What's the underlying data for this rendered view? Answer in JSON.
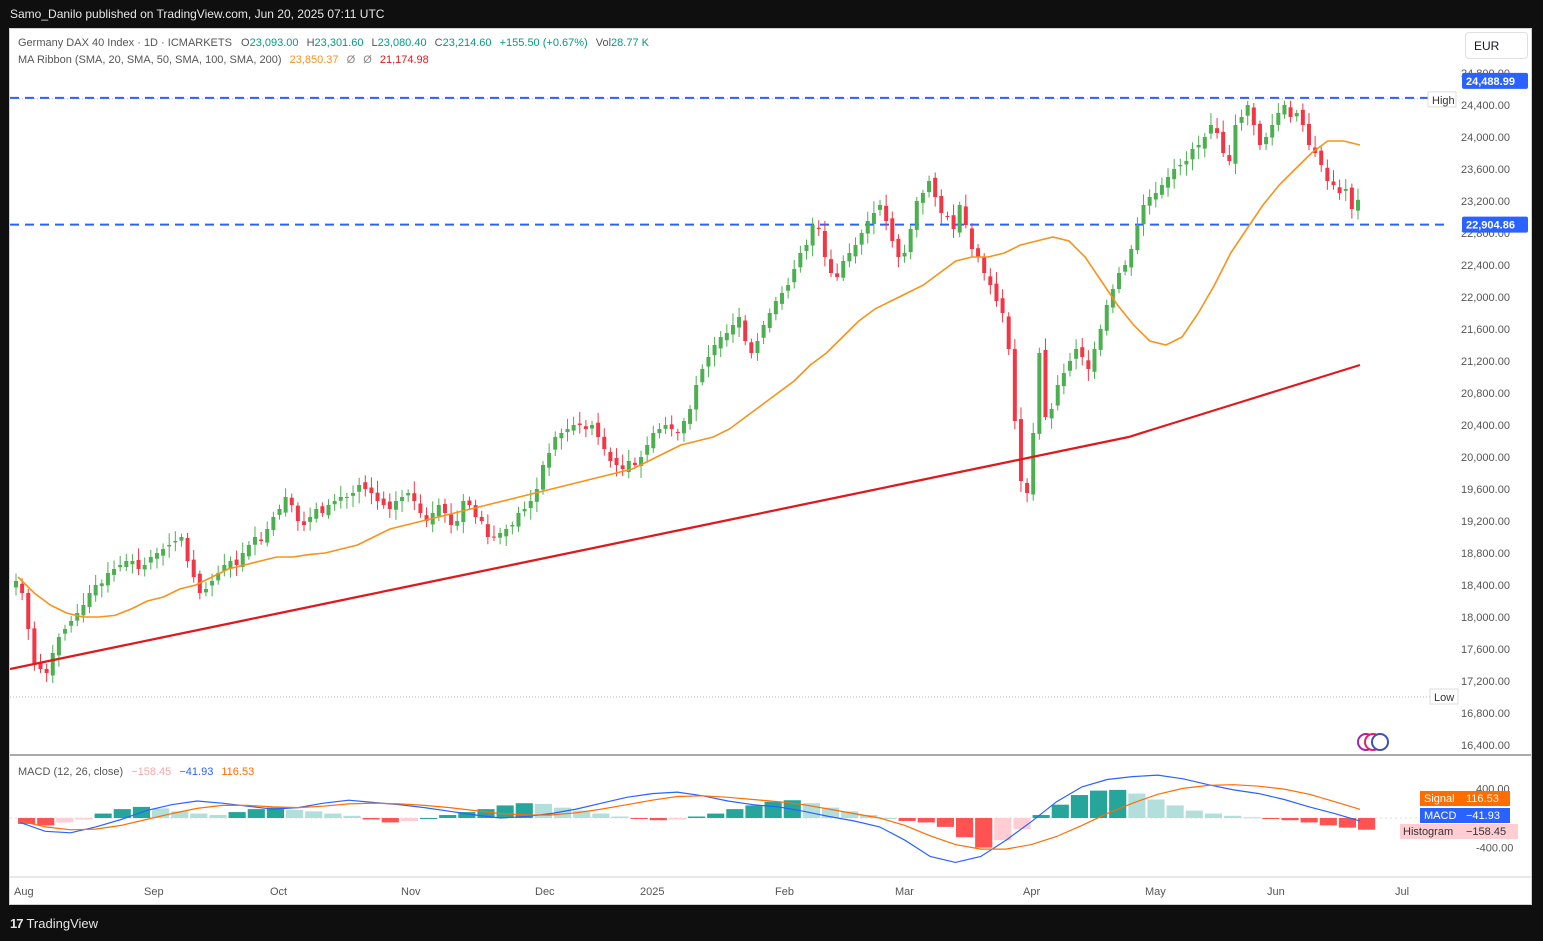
{
  "header": {
    "published": "Samo_Danilo published on TradingView.com, Jun 20, 2025 07:11 UTC"
  },
  "footer": {
    "logo_text": "TradingView"
  },
  "legend": {
    "symbol": "Germany DAX 40 Index · 1D · ICMARKETS",
    "o_label": "O",
    "o": "23,093.00",
    "h_label": "H",
    "h": "23,301.60",
    "l_label": "L",
    "l": "23,080.40",
    "c_label": "C",
    "c": "23,214.60",
    "change": "+155.50 (+0.67%)",
    "vol_label": "Vol",
    "vol": "28.77 K",
    "ma_label": "MA Ribbon (SMA, 20, SMA, 50, SMA, 100, SMA, 200)",
    "ma1": "23,850.37",
    "ma_sep1": "Ø",
    "ma_sep2": "Ø",
    "ma4": "21,174.98"
  },
  "currency_button": "EUR",
  "macd_legend": {
    "label": "MACD (12, 26, close)",
    "hist": "−158.45",
    "macd": "−41.93",
    "signal": "116.53"
  },
  "price_axis": {
    "ticks": [
      "24,800.00",
      "24,400.00",
      "24,000.00",
      "23,600.00",
      "23,200.00",
      "22,800.00",
      "22,400.00",
      "22,000.00",
      "21,600.00",
      "21,200.00",
      "20,800.00",
      "20,400.00",
      "20,000.00",
      "19,600.00",
      "19,200.00",
      "18,800.00",
      "18,400.00",
      "18,000.00",
      "17,600.00",
      "17,200.00",
      "16,800.00",
      "16,400.00"
    ],
    "high_level": "24,488.99",
    "low_level_text": "Low",
    "high_label": "High",
    "support_level": "22,904.86"
  },
  "macd_axis": {
    "ticks": [
      "400.00",
      "-400.00"
    ],
    "signal_label": "Signal",
    "signal_value": "116.53",
    "macd_label": "MACD",
    "macd_value": "−41.93",
    "hist_label": "Histogram",
    "hist_value": "−158.45"
  },
  "time_axis": [
    "Aug",
    "Sep",
    "Oct",
    "Nov",
    "Dec",
    "2025",
    "Feb",
    "Mar",
    "Apr",
    "May",
    "Jun",
    "Jul"
  ],
  "colors": {
    "up": "#4caf50",
    "down": "#f23645",
    "sma20": "#f7931a",
    "sma200": "#e0191d",
    "blue_line": "#2962ff",
    "macd": "#2962ff",
    "signal": "#ff6d00"
  },
  "chart_data": {
    "type": "candlestick",
    "instrument": "Germany DAX 40 Index",
    "timeframe": "1D",
    "currency": "EUR",
    "y_range": [
      16300,
      25000
    ],
    "horizontal_levels": {
      "high": 24488.99,
      "support": 22904.86,
      "low": 17000
    },
    "closes": [
      18450,
      18300,
      17850,
      17400,
      17350,
      17300,
      17550,
      17750,
      17850,
      17950,
      18050,
      18150,
      18300,
      18400,
      18420,
      18550,
      18600,
      18650,
      18700,
      18700,
      18600,
      18650,
      18750,
      18800,
      18850,
      18900,
      18950,
      19000,
      18700,
      18500,
      18300,
      18350,
      18450,
      18550,
      18650,
      18700,
      18650,
      18800,
      18900,
      19000,
      18950,
      19100,
      19250,
      19350,
      19500,
      19400,
      19200,
      19150,
      19250,
      19350,
      19300,
      19400,
      19450,
      19500,
      19500,
      19550,
      19650,
      19600,
      19550,
      19450,
      19400,
      19350,
      19450,
      19500,
      19550,
      19450,
      19300,
      19200,
      19300,
      19400,
      19300,
      19150,
      19200,
      19450,
      19400,
      19250,
      19200,
      19000,
      19000,
      19050,
      19100,
      19150,
      19300,
      19350,
      19450,
      19600,
      19900,
      20050,
      20250,
      20300,
      20350,
      20400,
      20400,
      20350,
      20400,
      20250,
      20100,
      19950,
      19900,
      19850,
      19950,
      19900,
      20000,
      20150,
      20300,
      20350,
      20400,
      20350,
      20300,
      20450,
      20600,
      20900,
      21100,
      21250,
      21400,
      21500,
      21550,
      21650,
      21750,
      21450,
      21300,
      21450,
      21650,
      21800,
      21950,
      22050,
      22150,
      22350,
      22550,
      22650,
      22900,
      22850,
      22500,
      22300,
      22250,
      22450,
      22550,
      22650,
      22800,
      22950,
      23050,
      23150,
      22950,
      22700,
      22500,
      22550,
      22850,
      23200,
      23300,
      23450,
      23250,
      23050,
      23000,
      22850,
      23150,
      22900,
      22600,
      22500,
      22300,
      22150,
      21950,
      21800,
      21350,
      20450,
      19700,
      19550,
      20300,
      21300,
      20500,
      20600,
      20900,
      21050,
      21200,
      21350,
      21250,
      21100,
      21350,
      21600,
      21900,
      22100,
      22300,
      22400,
      22600,
      22900,
      23150,
      23250,
      23300,
      23400,
      23500,
      23600,
      23650,
      23700,
      23850,
      23900,
      24000,
      24150,
      24050,
      23800,
      23700,
      24150,
      24250,
      24400,
      24150,
      23900,
      24000,
      24150,
      24300,
      24400,
      24250,
      24300,
      24150,
      23900,
      23800,
      23650,
      23450,
      23400,
      23300,
      23350,
      23100,
      23214.6
    ],
    "sma20": [
      18500,
      18300,
      18150,
      18050,
      18000,
      18000,
      18020,
      18100,
      18200,
      18250,
      18350,
      18400,
      18500,
      18600,
      18650,
      18700,
      18750,
      18750,
      18780,
      18800,
      18850,
      18900,
      19000,
      19100,
      19150,
      19200,
      19250,
      19300,
      19350,
      19400,
      19450,
      19500,
      19550,
      19600,
      19650,
      19700,
      19750,
      19800,
      19850,
      19950,
      20050,
      20150,
      20200,
      20250,
      20350,
      20500,
      20650,
      20800,
      20950,
      21150,
      21300,
      21500,
      21700,
      21850,
      21950,
      22050,
      22150,
      22300,
      22450,
      22500,
      22500,
      22550,
      22650,
      22700,
      22750,
      22700,
      22500,
      22200,
      21900,
      21650,
      21450,
      21400,
      21500,
      21800,
      22150,
      22550,
      22850,
      23150,
      23400,
      23600,
      23800,
      23950,
      23950,
      23900
    ],
    "sma200": [
      17350,
      17450,
      17550,
      17650,
      17750,
      17850,
      17950,
      18050,
      18150,
      18250,
      18350,
      18450,
      18550,
      18650,
      18750,
      18850,
      18950,
      19050,
      19150,
      19250,
      19350,
      19450,
      19550,
      19650,
      19750,
      19850,
      19950,
      20050,
      20150,
      20250,
      20400,
      20550,
      20700,
      20850,
      21000,
      21150
    ],
    "macd": {
      "macd": -41.93,
      "signal": 116.53,
      "histogram": -158.45,
      "range": [
        -500,
        500
      ]
    },
    "xlabel": "",
    "ylabel": ""
  }
}
